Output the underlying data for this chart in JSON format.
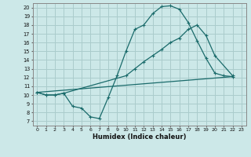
{
  "xlabel": "Humidex (Indice chaleur)",
  "bg_color": "#cce8e8",
  "grid_color": "#aacccc",
  "line_color": "#1a6b6b",
  "xlim": [
    -0.5,
    23.5
  ],
  "ylim": [
    6.5,
    20.5
  ],
  "xticks": [
    0,
    1,
    2,
    3,
    4,
    5,
    6,
    7,
    8,
    9,
    10,
    11,
    12,
    13,
    14,
    15,
    16,
    17,
    18,
    19,
    20,
    21,
    22,
    23
  ],
  "yticks": [
    7,
    8,
    9,
    10,
    11,
    12,
    13,
    14,
    15,
    16,
    17,
    18,
    19,
    20
  ],
  "curve1_x": [
    0,
    1,
    2,
    3,
    4,
    5,
    6,
    7,
    8,
    9,
    10,
    11,
    12,
    13,
    14,
    15,
    16,
    17,
    18,
    19,
    20,
    21,
    22
  ],
  "curve1_y": [
    10.3,
    10.0,
    10.0,
    10.2,
    8.7,
    8.5,
    7.5,
    7.3,
    9.7,
    12.2,
    15.0,
    17.5,
    18.0,
    19.3,
    20.1,
    20.2,
    19.8,
    18.3,
    16.2,
    14.2,
    12.5,
    12.2,
    12.1
  ],
  "curve2_x": [
    0,
    1,
    2,
    3,
    10,
    11,
    12,
    13,
    14,
    15,
    16,
    17,
    18,
    19,
    20,
    22
  ],
  "curve2_y": [
    10.3,
    10.0,
    10.0,
    10.2,
    12.2,
    13.0,
    13.8,
    14.5,
    15.2,
    16.0,
    16.5,
    17.5,
    18.0,
    16.8,
    14.5,
    12.2
  ],
  "curve3_x": [
    0,
    22
  ],
  "curve3_y": [
    10.3,
    12.1
  ]
}
